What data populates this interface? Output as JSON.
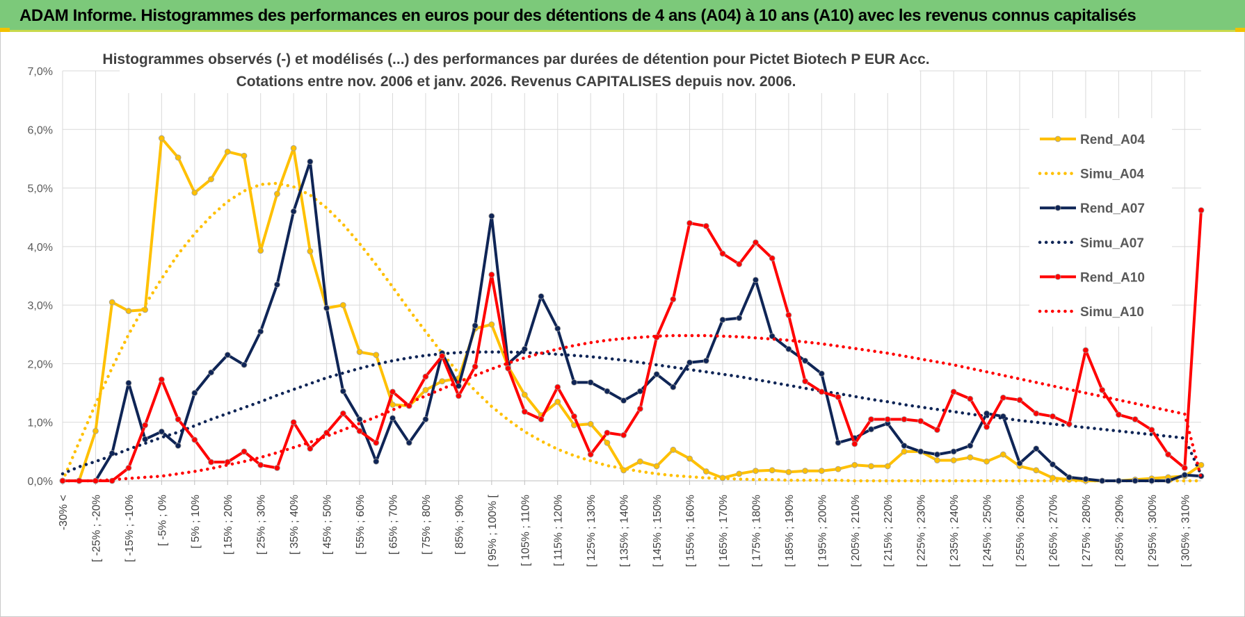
{
  "banner": {
    "title": "ADAM Informe. Histogrammes des performances en euros pour des détentions de 4 ans (A04) à 10 ans (A10) avec les revenus connus capitalisés"
  },
  "chart_data": {
    "type": "line",
    "title_line1": "Histogrammes observés (-) et modélisés (...) des performances par durées de détention pour Pictet Biotech P EUR Acc.",
    "title_line2": "Cotations entre nov. 2006 et janv. 2026. Revenus CAPITALISES depuis nov. 2006.",
    "ylim": [
      0,
      7
    ],
    "yticks": [
      0,
      1,
      2,
      3,
      4,
      5,
      6,
      7
    ],
    "ytick_labels": [
      "0,0%",
      "1,0%",
      "2,0%",
      "3,0%",
      "4,0%",
      "5,0%",
      "6,0%",
      "7,0%"
    ],
    "n_points": 70,
    "xtick_labels": [
      "-30% <",
      "[ -25% ; -20%",
      "[ -15% ; -10%",
      "[ -5% ; 0%",
      "[ 5% ; 10%",
      "[ 15% ; 20%",
      "[ 25% ; 30%",
      "[ 35% ; 40%",
      "[ 45% ; 50%",
      "[ 55% ; 60%",
      "[ 65% ; 70%",
      "[ 75% ; 80%",
      "[ 85% ; 90%",
      "[ 95% ; 100% [",
      "[ 105% ; 110%",
      "[ 115% ; 120%",
      "[ 125% ; 130%",
      "[ 135% ; 140%",
      "[ 145% ; 150%",
      "[ 155% ; 160%",
      "[ 165% ; 170%",
      "[ 175% ; 180%",
      "[ 185% ; 190%",
      "[ 195% ; 200%",
      "[ 205% ; 210%",
      "[ 215% ; 220%",
      "[ 225% ; 230%",
      "[ 235% ; 240%",
      "[ 245% ; 250%",
      "[ 255% ; 260%",
      "[ 265% ; 270%",
      "[ 275% ; 280%",
      "[ 285% ; 290%",
      "[ 295% ; 300%",
      "[ 305% ; 310%"
    ],
    "series": [
      {
        "name": "Rend_A04",
        "color": "#FFC000",
        "style": "solid",
        "values": [
          0,
          0,
          0.85,
          3.05,
          2.9,
          2.92,
          5.85,
          5.52,
          4.92,
          5.15,
          5.62,
          5.55,
          3.93,
          4.9,
          5.68,
          3.92,
          2.95,
          3.0,
          2.2,
          2.15,
          1.3,
          1.28,
          1.55,
          1.7,
          1.75,
          2.6,
          2.67,
          1.95,
          1.47,
          1.12,
          1.35,
          0.95,
          0.97,
          0.65,
          0.18,
          0.33,
          0.25,
          0.53,
          0.38,
          0.16,
          0.05,
          0.12,
          0.17,
          0.18,
          0.15,
          0.17,
          0.17,
          0.2,
          0.27,
          0.25,
          0.25,
          0.5,
          0.5,
          0.35,
          0.35,
          0.4,
          0.33,
          0.45,
          0.25,
          0.18,
          0.05,
          0.02,
          0.0,
          0.0,
          0.0,
          0.02,
          0.04,
          0.06,
          0.08,
          0.27
        ]
      },
      {
        "name": "Simu_A04",
        "color": "#FFC000",
        "style": "dotted",
        "values": [
          0.0,
          0.66,
          1.31,
          1.93,
          2.5,
          3.0,
          3.45,
          3.87,
          4.22,
          4.52,
          4.77,
          4.95,
          5.06,
          5.08,
          5.02,
          4.88,
          4.66,
          4.38,
          4.05,
          3.69,
          3.31,
          2.92,
          2.55,
          2.18,
          1.84,
          1.54,
          1.27,
          1.04,
          0.84,
          0.68,
          0.54,
          0.43,
          0.34,
          0.26,
          0.21,
          0.16,
          0.12,
          0.09,
          0.07,
          0.05,
          0.04,
          0.03,
          0.02,
          0.02,
          0.01,
          0.01,
          0.01,
          0.01,
          0.0,
          0.0,
          0.0,
          0.0,
          0.0,
          0.0,
          0.0,
          0.0,
          0.0,
          0.0,
          0.0,
          0.0,
          0.0,
          0.0,
          0.0,
          0.0,
          0.0,
          0.0,
          0.0,
          0.0,
          0.0,
          0.0
        ]
      },
      {
        "name": "Rend_A07",
        "color": "#0F2556",
        "style": "solid",
        "values": [
          0,
          0,
          0,
          0.47,
          1.67,
          0.71,
          0.84,
          0.6,
          1.5,
          1.85,
          2.15,
          1.98,
          2.55,
          3.35,
          4.6,
          5.45,
          2.95,
          1.53,
          1.05,
          0.33,
          1.07,
          0.65,
          1.05,
          2.18,
          1.62,
          2.65,
          4.52,
          2.0,
          2.25,
          3.15,
          2.6,
          1.68,
          1.68,
          1.53,
          1.37,
          1.53,
          1.82,
          1.6,
          2.02,
          2.05,
          2.75,
          2.78,
          3.43,
          2.47,
          2.25,
          2.05,
          1.83,
          0.65,
          0.73,
          0.88,
          0.98,
          0.6,
          0.5,
          0.45,
          0.5,
          0.6,
          1.15,
          1.1,
          0.3,
          0.55,
          0.28,
          0.06,
          0.03,
          0.0,
          0.0,
          0.0,
          0.0,
          0.0,
          0.1,
          0.08
        ]
      },
      {
        "name": "Simu_A07",
        "color": "#0F2556",
        "style": "dotted",
        "values": [
          0.12,
          0.24,
          0.33,
          0.43,
          0.54,
          0.64,
          0.74,
          0.83,
          0.94,
          1.05,
          1.15,
          1.25,
          1.35,
          1.46,
          1.56,
          1.66,
          1.76,
          1.84,
          1.92,
          1.99,
          2.05,
          2.1,
          2.14,
          2.17,
          2.19,
          2.2,
          2.2,
          2.2,
          2.19,
          2.18,
          2.16,
          2.14,
          2.12,
          2.09,
          2.06,
          2.02,
          1.98,
          1.94,
          1.9,
          1.86,
          1.82,
          1.78,
          1.73,
          1.68,
          1.63,
          1.58,
          1.53,
          1.49,
          1.44,
          1.39,
          1.35,
          1.3,
          1.26,
          1.22,
          1.18,
          1.14,
          1.1,
          1.07,
          1.03,
          1.0,
          0.97,
          0.94,
          0.91,
          0.88,
          0.85,
          0.82,
          0.79,
          0.76,
          0.73,
          0.1
        ]
      },
      {
        "name": "Rend_A10",
        "color": "#FF0000",
        "style": "solid",
        "values": [
          0,
          0,
          0,
          0,
          0.22,
          0.95,
          1.73,
          1.05,
          0.7,
          0.32,
          0.32,
          0.5,
          0.27,
          0.22,
          1.0,
          0.55,
          0.82,
          1.15,
          0.85,
          0.65,
          1.52,
          1.28,
          1.78,
          2.13,
          1.45,
          1.95,
          3.52,
          1.92,
          1.18,
          1.05,
          1.6,
          1.1,
          0.45,
          0.82,
          0.78,
          1.23,
          2.45,
          3.1,
          4.4,
          4.35,
          3.88,
          3.7,
          4.07,
          3.8,
          2.83,
          1.7,
          1.52,
          1.43,
          0.63,
          1.05,
          1.05,
          1.05,
          1.02,
          0.87,
          1.52,
          1.4,
          0.92,
          1.42,
          1.38,
          1.15,
          1.1,
          0.97,
          2.23,
          1.55,
          1.13,
          1.05,
          0.87,
          0.45,
          0.22,
          4.62
        ]
      },
      {
        "name": "Simu_A10",
        "color": "#FF0000",
        "style": "dotted",
        "values": [
          0.0,
          0.0,
          0.0,
          0.02,
          0.04,
          0.06,
          0.08,
          0.12,
          0.16,
          0.21,
          0.27,
          0.33,
          0.4,
          0.48,
          0.57,
          0.66,
          0.76,
          0.87,
          0.98,
          1.09,
          1.21,
          1.33,
          1.45,
          1.57,
          1.69,
          1.8,
          1.91,
          2.01,
          2.1,
          2.18,
          2.25,
          2.31,
          2.36,
          2.4,
          2.43,
          2.45,
          2.47,
          2.48,
          2.48,
          2.48,
          2.47,
          2.46,
          2.44,
          2.42,
          2.4,
          2.37,
          2.34,
          2.3,
          2.26,
          2.22,
          2.18,
          2.13,
          2.08,
          2.03,
          1.98,
          1.92,
          1.86,
          1.8,
          1.74,
          1.68,
          1.62,
          1.56,
          1.5,
          1.44,
          1.38,
          1.32,
          1.26,
          1.2,
          1.14,
          0.05
        ]
      }
    ],
    "legend_position": "right"
  }
}
